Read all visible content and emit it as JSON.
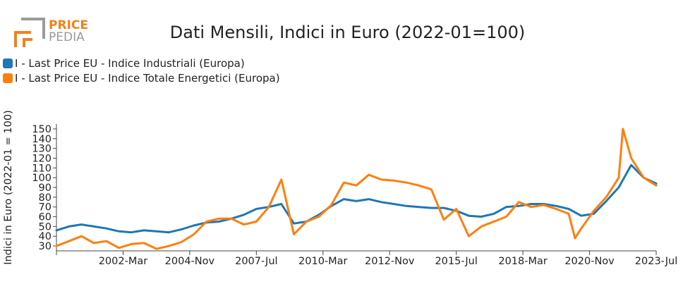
{
  "logo": {
    "line1": "PRICE",
    "line2": "PEDIA",
    "accent": "#f0821e",
    "gray": "#9a9a9a"
  },
  "chart_data": {
    "type": "line",
    "title": "Dati Mensili, Indici in Euro (2022-01=100)",
    "xlabel": "",
    "ylabel": "Indici in Euro (2022-01 = 100)",
    "x_start": "1999-07",
    "x_end": "2023-07",
    "x_ticks": [
      "2002-Mar",
      "2004-Nov",
      "2007-Jul",
      "2010-Mar",
      "2012-Nov",
      "2015-Jul",
      "2018-Mar",
      "2020-Nov",
      "2023-Jul"
    ],
    "ylim": [
      25,
      155
    ],
    "y_ticks": [
      30,
      40,
      50,
      60,
      70,
      80,
      90,
      100,
      110,
      120,
      130,
      140,
      150
    ],
    "grid": false,
    "legend_position": "top-left",
    "series": [
      {
        "name": "I - Last Price EU - Indice Industriali (Europa)",
        "color": "#1f77b4",
        "x": [
          "1999-07",
          "2000-01",
          "2000-07",
          "2001-01",
          "2001-07",
          "2002-01",
          "2002-07",
          "2003-01",
          "2003-07",
          "2004-01",
          "2004-07",
          "2005-01",
          "2005-07",
          "2006-01",
          "2006-07",
          "2007-01",
          "2007-07",
          "2008-01",
          "2008-07",
          "2009-01",
          "2009-07",
          "2010-01",
          "2010-07",
          "2011-01",
          "2011-07",
          "2012-01",
          "2012-07",
          "2013-01",
          "2013-07",
          "2014-01",
          "2014-07",
          "2015-01",
          "2015-07",
          "2016-01",
          "2016-07",
          "2017-01",
          "2017-07",
          "2018-01",
          "2018-07",
          "2019-01",
          "2019-07",
          "2020-01",
          "2020-07",
          "2021-01",
          "2021-07",
          "2022-01",
          "2022-07",
          "2023-01",
          "2023-07"
        ],
        "y": [
          46,
          50,
          52,
          50,
          48,
          45,
          44,
          46,
          45,
          44,
          47,
          51,
          54,
          55,
          58,
          62,
          68,
          70,
          73,
          53,
          55,
          62,
          71,
          78,
          76,
          78,
          75,
          73,
          71,
          70,
          69,
          69,
          66,
          61,
          60,
          63,
          70,
          71,
          73,
          73,
          71,
          68,
          61,
          63,
          76,
          90,
          113,
          100,
          94
        ]
      },
      {
        "name": "I - Last Price EU - Indice Totale Energetici (Europa)",
        "color": "#ff7f0e",
        "x": [
          "1999-07",
          "2000-01",
          "2000-07",
          "2001-01",
          "2001-07",
          "2002-01",
          "2002-07",
          "2003-01",
          "2003-07",
          "2004-01",
          "2004-07",
          "2005-01",
          "2005-07",
          "2006-01",
          "2006-07",
          "2007-01",
          "2007-07",
          "2008-01",
          "2008-07",
          "2009-01",
          "2009-07",
          "2010-01",
          "2010-07",
          "2011-01",
          "2011-07",
          "2012-01",
          "2012-07",
          "2013-01",
          "2013-07",
          "2014-01",
          "2014-07",
          "2015-01",
          "2015-07",
          "2016-01",
          "2016-07",
          "2017-01",
          "2017-07",
          "2018-01",
          "2018-07",
          "2019-01",
          "2019-07",
          "2020-01",
          "2020-04",
          "2020-07",
          "2021-01",
          "2021-07",
          "2022-01",
          "2022-03",
          "2022-07",
          "2023-01",
          "2023-07"
        ],
        "y": [
          30,
          35,
          40,
          33,
          35,
          28,
          32,
          33,
          27,
          30,
          34,
          42,
          55,
          58,
          58,
          52,
          55,
          70,
          98,
          42,
          55,
          60,
          72,
          95,
          92,
          103,
          98,
          97,
          95,
          92,
          88,
          57,
          68,
          40,
          50,
          55,
          60,
          75,
          70,
          72,
          68,
          63,
          38,
          48,
          66,
          80,
          100,
          150,
          120,
          100,
          92
        ]
      }
    ]
  }
}
